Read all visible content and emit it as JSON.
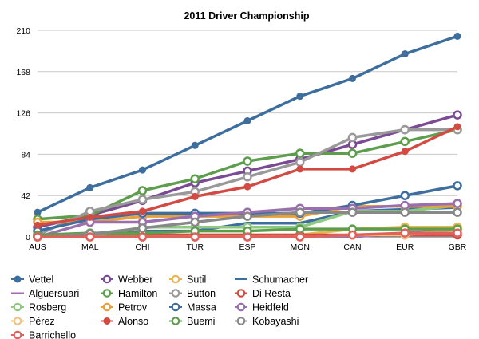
{
  "chart_data": {
    "type": "line",
    "title": "2011 Driver Championship",
    "xlabel": "",
    "ylabel": "",
    "categories": [
      "AUS",
      "MAL",
      "CHI",
      "TUR",
      "ESP",
      "MON",
      "CAN",
      "EUR",
      "GBR"
    ],
    "ylim": [
      0,
      210
    ],
    "yticks": [
      0,
      42,
      84,
      126,
      168,
      210
    ],
    "grid": true,
    "legend_position": "bottom",
    "series": [
      {
        "name": "Vettel",
        "color": "#3d6e9e",
        "marker": "dot",
        "values": [
          25,
          50,
          68,
          93,
          118,
          143,
          161,
          186,
          204
        ]
      },
      {
        "name": "Webber",
        "color": "#7b4a94",
        "marker": "ring",
        "values": [
          10,
          22,
          37,
          55,
          67,
          79,
          94,
          109,
          124
        ]
      },
      {
        "name": "Sutil",
        "color": "#e8b64f",
        "marker": "ring",
        "values": [
          0,
          2,
          2,
          2,
          2,
          2,
          8,
          10,
          10
        ]
      },
      {
        "name": "Schumacher",
        "color": "#3d6e9e",
        "marker": "none",
        "values": [
          0,
          0,
          6,
          6,
          14,
          14,
          26,
          28,
          30
        ]
      },
      {
        "name": "Alguersuari",
        "color": "#9b6fae",
        "marker": "none",
        "values": [
          0,
          0,
          0,
          0,
          0,
          0,
          0,
          4,
          8
        ]
      },
      {
        "name": "Hamilton",
        "color": "#5d9e4c",
        "marker": "ring",
        "values": [
          18,
          22,
          47,
          59,
          77,
          85,
          85,
          97,
          109
        ]
      },
      {
        "name": "Button",
        "color": "#999999",
        "marker": "ring",
        "values": [
          2,
          26,
          38,
          46,
          61,
          76,
          101,
          109,
          109
        ]
      },
      {
        "name": "Di Resta",
        "color": "#d34a43",
        "marker": "ring",
        "values": [
          1,
          2,
          2,
          2,
          2,
          2,
          2,
          2,
          2
        ]
      },
      {
        "name": "Rosberg",
        "color": "#8fc97f",
        "marker": "ring",
        "values": [
          0,
          0,
          10,
          10,
          10,
          10,
          26,
          26,
          32
        ]
      },
      {
        "name": "Petrov",
        "color": "#e8a03a",
        "marker": "ring",
        "values": [
          15,
          15,
          21,
          21,
          21,
          21,
          31,
          31,
          31
        ]
      },
      {
        "name": "Massa",
        "color": "#3d6e9e",
        "marker": "ring",
        "values": [
          6,
          18,
          24,
          24,
          24,
          24,
          32,
          42,
          52
        ]
      },
      {
        "name": "Heidfeld",
        "color": "#9b6fae",
        "marker": "ring",
        "values": [
          0,
          15,
          15,
          21,
          25,
          29,
          29,
          32,
          34
        ]
      },
      {
        "name": "Pérez",
        "color": "#f2c27a",
        "marker": "ring",
        "values": [
          0,
          0,
          0,
          0,
          0,
          0,
          2,
          2,
          8
        ]
      },
      {
        "name": "Alonso",
        "color": "#d34a43",
        "marker": "dot",
        "values": [
          12,
          20,
          26,
          41,
          51,
          69,
          69,
          87,
          112
        ]
      },
      {
        "name": "Buemi",
        "color": "#5d9e4c",
        "marker": "ring",
        "values": [
          2,
          4,
          4,
          6,
          6,
          8,
          8,
          8,
          8
        ]
      },
      {
        "name": "Kobayashi",
        "color": "#888888",
        "marker": "ring",
        "values": [
          0,
          3,
          9,
          15,
          21,
          25,
          25,
          25,
          25
        ]
      },
      {
        "name": "Barrichello",
        "color": "#e0605c",
        "marker": "ring",
        "values": [
          0,
          0,
          0,
          0,
          0,
          0,
          2,
          4,
          4
        ]
      }
    ]
  }
}
